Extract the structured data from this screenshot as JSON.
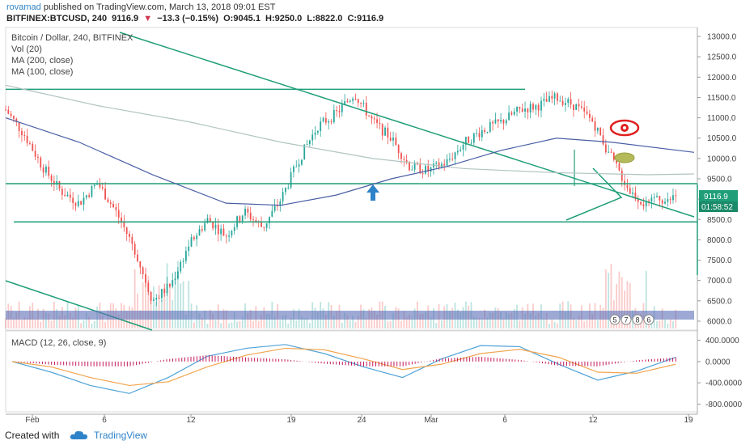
{
  "header": {
    "author": "rovamad",
    "published": "published on TradingView.com, March 13, 2018 09:01 EST",
    "symbol": "BITFINEX:BTCUSD, 240",
    "last": "9116.9",
    "change": "−13.3 (−0.15%)",
    "open": "O:9045.1",
    "high": "H:9250.0",
    "low": "L:8822.0",
    "close": "C:9116.9"
  },
  "legend": {
    "title": "Bitcoin / Dollar, 240, BITFINEX",
    "vol": "Vol (20)",
    "ma200": "MA (200, close)",
    "ma100": "MA (100, close)"
  },
  "macd": {
    "label": "MACD (12, 26, close, 9)"
  },
  "price_badge": {
    "price": "9116.9",
    "countdown": "01:58:52"
  },
  "events": [
    "5",
    "7",
    "8",
    "6"
  ],
  "footer": {
    "created": "Created with",
    "brand": "TradingView"
  },
  "colors": {
    "up": "#26a69a",
    "down": "#ef5350",
    "trend": "#1f9e78",
    "ma200": "#b0c4c2",
    "ma100": "#4a5fa5",
    "macd": "#4fa3d8",
    "signal": "#f2a44e",
    "hist": "#c2185b",
    "badge": "#1f9e78"
  },
  "chart_data": [
    {
      "type": "candlestick",
      "title": "Bitcoin / Dollar, 240, BITFINEX",
      "x_ticks": [
        "Feb",
        "6",
        "12",
        "19",
        "24",
        "Mar",
        "6",
        "12",
        "19"
      ],
      "y_ticks": [
        6000.0,
        6500.0,
        7000.0,
        7500.0,
        8000.0,
        8500.0,
        9000.0,
        9500.0,
        10000.0,
        10500.0,
        11000.0,
        11500.0,
        12000.0,
        12500.0,
        13000.0
      ],
      "ylim": [
        5780,
        13220
      ],
      "close_path": [
        [
          0,
          11200
        ],
        [
          2,
          10600
        ],
        [
          4,
          9800
        ],
        [
          6,
          9200
        ],
        [
          8,
          8900
        ],
        [
          10,
          9400
        ],
        [
          12,
          8700
        ],
        [
          14,
          7800
        ],
        [
          16,
          6500
        ],
        [
          18,
          6900
        ],
        [
          20,
          7900
        ],
        [
          22,
          8500
        ],
        [
          24,
          8100
        ],
        [
          26,
          8700
        ],
        [
          28,
          8300
        ],
        [
          30,
          9000
        ],
        [
          32,
          10000
        ],
        [
          34,
          10800
        ],
        [
          36,
          11100
        ],
        [
          38,
          11600
        ],
        [
          40,
          10900
        ],
        [
          42,
          10500
        ],
        [
          44,
          9800
        ],
        [
          46,
          9700
        ],
        [
          48,
          9900
        ],
        [
          50,
          10400
        ],
        [
          52,
          10700
        ],
        [
          54,
          10900
        ],
        [
          56,
          11200
        ],
        [
          58,
          11300
        ],
        [
          60,
          11500
        ],
        [
          62,
          11300
        ],
        [
          64,
          10900
        ],
        [
          66,
          10000
        ],
        [
          68,
          9200
        ],
        [
          70,
          8800
        ],
        [
          71,
          9100
        ],
        [
          72,
          8900
        ],
        [
          73,
          9100
        ]
      ],
      "horizontal_lines": [
        11700,
        9380,
        8440
      ],
      "ma200": [
        [
          0,
          11800
        ],
        [
          10,
          11300
        ],
        [
          20,
          10900
        ],
        [
          30,
          10400
        ],
        [
          40,
          10000
        ],
        [
          50,
          9750
        ],
        [
          60,
          9650
        ],
        [
          70,
          9600
        ],
        [
          75,
          9620
        ]
      ],
      "ma100": [
        [
          0,
          11000
        ],
        [
          8,
          10400
        ],
        [
          16,
          9600
        ],
        [
          24,
          8900
        ],
        [
          30,
          8850
        ],
        [
          36,
          9100
        ],
        [
          42,
          9500
        ],
        [
          48,
          9800
        ],
        [
          54,
          10200
        ],
        [
          60,
          10500
        ],
        [
          66,
          10400
        ],
        [
          75,
          10150
        ]
      ],
      "annotations": [
        {
          "type": "arrow-up",
          "x": 45,
          "y": 9300
        },
        {
          "type": "eye",
          "x": 74,
          "y": 10900
        },
        {
          "type": "ellipse",
          "x": 74,
          "y": 10050
        }
      ]
    },
    {
      "type": "line",
      "title": "MACD (12, 26, close, 9)",
      "y_ticks": [
        400.0,
        0.0,
        -400.0,
        -800.0
      ],
      "ylim": [
        -900,
        500
      ],
      "series": [
        {
          "values": [
            0,
            -200,
            -450,
            -600,
            -300,
            100,
            250,
            320,
            150,
            -100,
            -300,
            50,
            300,
            280,
            -50,
            -350,
            -180,
            80
          ]
        },
        {
          "values": [
            0,
            -100,
            -300,
            -450,
            -380,
            -100,
            120,
            250,
            220,
            50,
            -150,
            -50,
            150,
            230,
            80,
            -200,
            -220,
            -50
          ]
        }
      ]
    }
  ]
}
